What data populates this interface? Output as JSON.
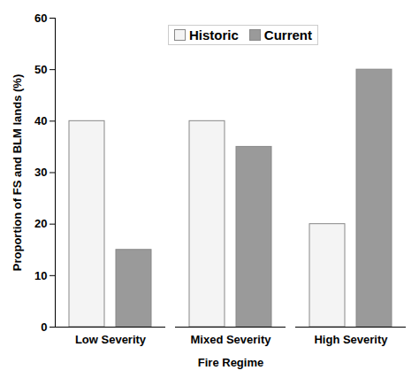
{
  "chart_data": {
    "type": "bar",
    "x_label": "Fire Regime",
    "y_label": "Proportion of FS and BLM lands (%)",
    "categories": [
      "Low Severity",
      "Mixed Severity",
      "High Severity"
    ],
    "series": [
      {
        "name": "Historic",
        "color": "#f4f4f4",
        "values": [
          40,
          40,
          20
        ]
      },
      {
        "name": "Current",
        "color": "#9a9a9a",
        "values": [
          15,
          35,
          50
        ]
      }
    ],
    "ylim": [
      0,
      60
    ],
    "yticks": [
      0,
      10,
      20,
      30,
      40,
      50,
      60
    ],
    "grid": false,
    "legend": "top-right"
  }
}
